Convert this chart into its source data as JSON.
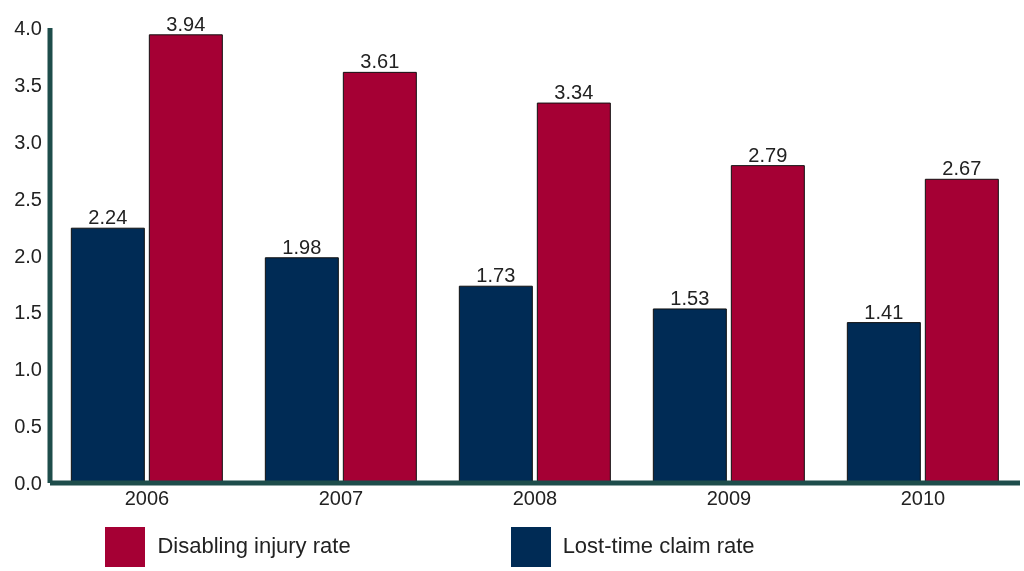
{
  "chart_data": {
    "type": "bar",
    "categories": [
      "2006",
      "2007",
      "2008",
      "2009",
      "2010"
    ],
    "series": [
      {
        "name": "Lost-time claim rate",
        "color": "#002b55",
        "values": [
          2.24,
          1.98,
          1.73,
          1.53,
          1.41
        ]
      },
      {
        "name": "Disabling injury rate",
        "color": "#a50034",
        "values": [
          3.94,
          3.61,
          3.34,
          2.79,
          2.67
        ]
      }
    ],
    "ylim": [
      0,
      4
    ],
    "yticks": [
      {
        "value": 0,
        "label": "0.0"
      },
      {
        "value": 0.5,
        "label": "0.5"
      },
      {
        "value": 1,
        "label": "1.0"
      },
      {
        "value": 1.5,
        "label": "1.5"
      },
      {
        "value": 2,
        "label": "2.0"
      },
      {
        "value": 2.5,
        "label": "2.5"
      },
      {
        "value": 3,
        "label": "3.0"
      },
      {
        "value": 3.5,
        "label": "3.5"
      },
      {
        "value": 4,
        "label": "4.0"
      }
    ],
    "data_labels": true,
    "grid": false,
    "legend": "bottom"
  }
}
